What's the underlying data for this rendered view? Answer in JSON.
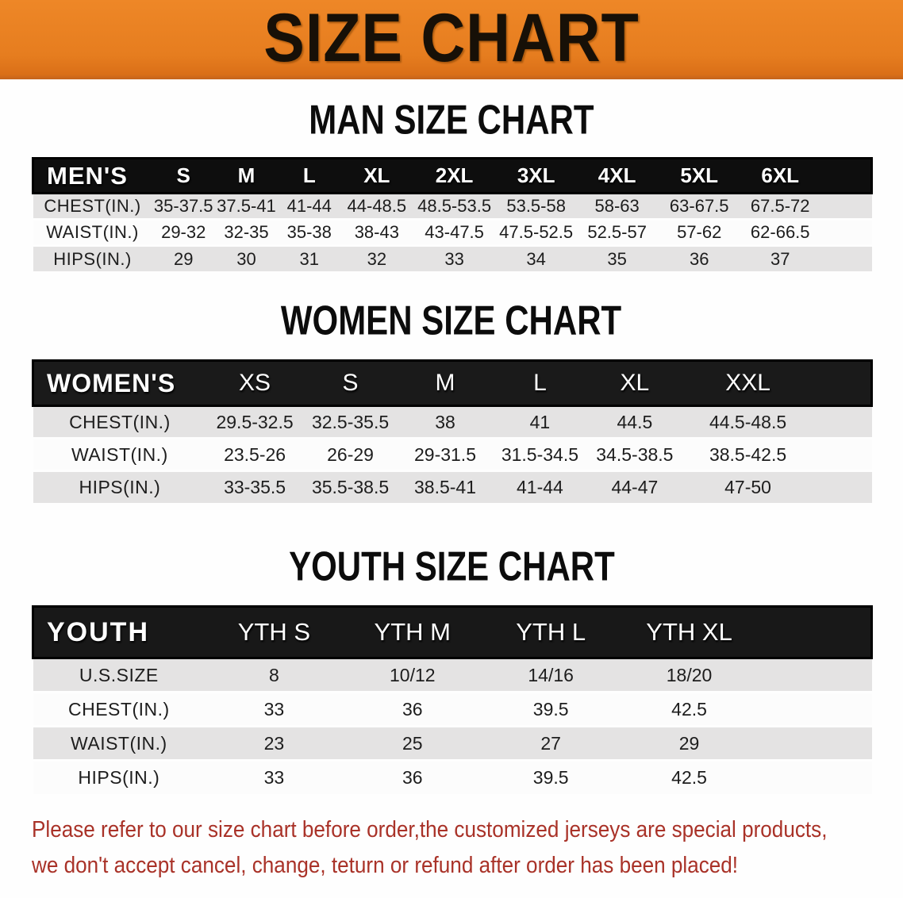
{
  "banner": {
    "title": "SIZE CHART",
    "background_color": "#E67D1F",
    "text_color": "#171007"
  },
  "sections": [
    {
      "heading": "MAN SIZE CHART",
      "table": {
        "group_label": "MEN'S",
        "columns": [
          "S",
          "M",
          "L",
          "XL",
          "2XL",
          "3XL",
          "4XL",
          "5XL",
          "6XL"
        ],
        "rows": [
          {
            "label": "CHEST(IN.)",
            "values": [
              "35-37.5",
              "37.5-41",
              "41-44",
              "44-48.5",
              "48.5-53.5",
              "53.5-58",
              "58-63",
              "63-67.5",
              "67.5-72"
            ]
          },
          {
            "label": "WAIST(IN.)",
            "values": [
              "29-32",
              "32-35",
              "35-38",
              "38-43",
              "43-47.5",
              "47.5-52.5",
              "52.5-57",
              "57-62",
              "62-66.5"
            ]
          },
          {
            "label": "HIPS(IN.)",
            "values": [
              "29",
              "30",
              "31",
              "32",
              "33",
              "34",
              "35",
              "36",
              "37"
            ]
          }
        ]
      }
    },
    {
      "heading": "WOMEN SIZE CHART",
      "table": {
        "group_label": "WOMEN'S",
        "columns": [
          "XS",
          "S",
          "M",
          "L",
          "XL",
          "XXL"
        ],
        "rows": [
          {
            "label": "CHEST(IN.)",
            "values": [
              "29.5-32.5",
              "32.5-35.5",
              "38",
              "41",
              "44.5",
              "44.5-48.5"
            ]
          },
          {
            "label": "WAIST(IN.)",
            "values": [
              "23.5-26",
              "26-29",
              "29-31.5",
              "31.5-34.5",
              "34.5-38.5",
              "38.5-42.5"
            ]
          },
          {
            "label": "HIPS(IN.)",
            "values": [
              "33-35.5",
              "35.5-38.5",
              "38.5-41",
              "41-44",
              "44-47",
              "47-50"
            ]
          }
        ]
      }
    },
    {
      "heading": "YOUTH SIZE CHART",
      "table": {
        "group_label": "YOUTH",
        "columns": [
          "YTH S",
          "YTH M",
          "YTH L",
          "YTH XL"
        ],
        "rows": [
          {
            "label": "U.S.SIZE",
            "values": [
              "8",
              "10/12",
              "14/16",
              "18/20"
            ]
          },
          {
            "label": "CHEST(IN.)",
            "values": [
              "33",
              "36",
              "39.5",
              "42.5"
            ]
          },
          {
            "label": "WAIST(IN.)",
            "values": [
              "23",
              "25",
              "27",
              "29"
            ]
          },
          {
            "label": "HIPS(IN.)",
            "values": [
              "33",
              "36",
              "39.5",
              "42.5"
            ]
          }
        ]
      }
    }
  ],
  "disclaimer": {
    "line1": "Please refer to our size chart before order,the customized jerseys are special products,",
    "line2": "we don't accept cancel, change, teturn or refund after order has been placed!",
    "text_color": "#A93228"
  },
  "colors": {
    "header_bar": "#161616",
    "stripe_row": "#E4E3E3",
    "table_text": "#1D1D1D"
  }
}
